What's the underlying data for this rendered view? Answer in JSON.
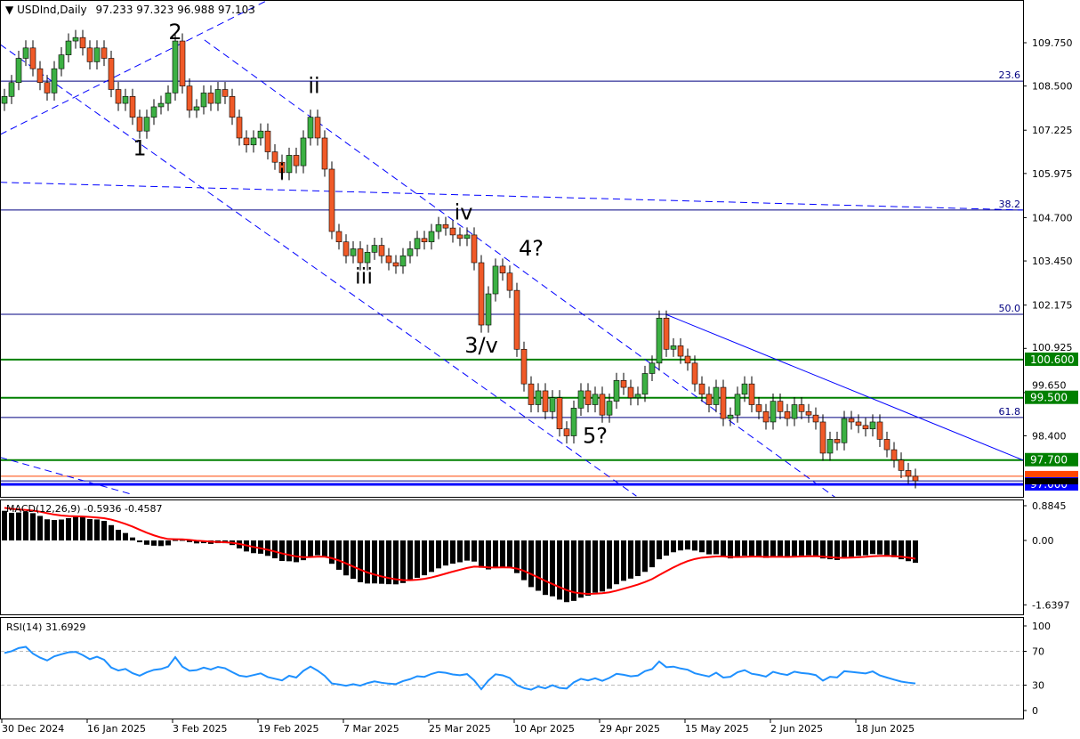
{
  "header": {
    "symbol_label": "USDInd,Daily",
    "ohlc": "97.233 97.323 96.988 97.103",
    "menu_icon": "triangle-down-icon"
  },
  "chart_data": {
    "type": "candlestick",
    "symbol": "USDInd",
    "timeframe": "Daily",
    "last_ohlc": {
      "open": 97.233,
      "high": 97.323,
      "low": 96.988,
      "close": 97.103
    },
    "x_tick_labels": [
      "30 Dec 2024",
      "16 Jan 2025",
      "3 Feb 2025",
      "19 Feb 2025",
      "7 Mar 2025",
      "25 Mar 2025",
      "10 Apr 2025",
      "29 Apr 2025",
      "15 May 2025",
      "2 Jun 2025",
      "18 Jun 2025"
    ],
    "y_tick_labels": [
      "109.750",
      "108.500",
      "107.225",
      "105.975",
      "104.700",
      "103.450",
      "102.175",
      "100.925",
      "99.650",
      "98.400"
    ],
    "ylim": [
      96.8,
      110.9
    ],
    "closes": [
      108.2,
      108.6,
      109.3,
      109.6,
      109.0,
      108.6,
      108.3,
      109.0,
      109.4,
      109.8,
      109.9,
      109.6,
      109.2,
      109.6,
      109.3,
      108.4,
      108.0,
      108.2,
      107.6,
      107.2,
      107.6,
      107.9,
      108.0,
      108.3,
      109.8,
      108.5,
      107.8,
      107.9,
      108.3,
      108.0,
      108.4,
      108.2,
      107.6,
      107.0,
      106.8,
      107.0,
      107.2,
      106.6,
      106.3,
      106.0,
      106.5,
      106.2,
      107.0,
      107.6,
      107.0,
      106.1,
      104.3,
      104.0,
      103.6,
      103.8,
      103.4,
      103.7,
      103.9,
      103.6,
      103.4,
      103.3,
      103.6,
      103.8,
      104.1,
      104.0,
      104.3,
      104.5,
      104.4,
      104.2,
      104.1,
      104.2,
      103.4,
      101.6,
      102.5,
      103.3,
      103.1,
      102.6,
      100.9,
      99.9,
      99.3,
      99.7,
      99.1,
      99.5,
      98.6,
      98.4,
      99.2,
      99.7,
      99.3,
      99.6,
      99.0,
      99.4,
      100.0,
      99.8,
      99.5,
      99.6,
      100.2,
      100.5,
      101.8,
      100.9,
      101.0,
      100.7,
      100.5,
      99.9,
      99.6,
      99.3,
      99.8,
      98.9,
      99.0,
      99.6,
      99.9,
      99.3,
      99.1,
      98.8,
      99.4,
      99.1,
      98.9,
      99.3,
      99.1,
      99.0,
      98.8,
      97.9,
      98.3,
      98.2,
      98.9,
      98.8,
      98.7,
      98.6,
      98.8,
      98.3,
      98.0,
      97.7,
      97.4,
      97.233,
      97.103
    ],
    "levels": [
      {
        "price": 108.64,
        "label": "23.6",
        "color": "#000080",
        "kind": "fib"
      },
      {
        "price": 104.92,
        "label": "38.2",
        "color": "#000080",
        "kind": "fib"
      },
      {
        "price": 101.91,
        "label": "50.0",
        "color": "#000080",
        "kind": "fib"
      },
      {
        "price": 98.93,
        "label": "61.8",
        "color": "#000080",
        "kind": "fib"
      },
      {
        "price": 100.6,
        "label": "100.600",
        "color": "#008000",
        "kind": "support"
      },
      {
        "price": 99.5,
        "label": "99.500",
        "color": "#008000",
        "kind": "support"
      },
      {
        "price": 97.7,
        "label": "97.700",
        "color": "#008000",
        "kind": "support"
      },
      {
        "price": 97.233,
        "label": "",
        "color": "#ff4500",
        "kind": "open"
      },
      {
        "price": 97.1,
        "label": "",
        "color": "#00008b",
        "kind": "line"
      },
      {
        "price": 97.0,
        "label": "97.000",
        "color": "#0000ff",
        "kind": "support"
      }
    ],
    "trendlines": [
      {
        "from": [
          -0.6,
          107.1
        ],
        "to": [
          37,
          110.98
        ],
        "style": "dashed"
      },
      {
        "from": [
          -0.6,
          109.7
        ],
        "to": [
          88.8,
          96.66
        ],
        "style": "dashed"
      },
      {
        "from": [
          28.1,
          109.83
        ],
        "to": [
          116.9,
          96.6
        ],
        "style": "dashed"
      },
      {
        "from": [
          -0.6,
          105.72
        ],
        "to": [
          143.1,
          104.92
        ],
        "style": "dashed"
      },
      {
        "from": [
          -0.6,
          97.78
        ],
        "to": [
          18.1,
          96.7
        ],
        "style": "dashed"
      },
      {
        "from": [
          92.9,
          101.91
        ],
        "to": [
          143.1,
          97.7
        ],
        "style": "solid"
      }
    ],
    "wave_labels": [
      {
        "text": "2",
        "bar": 24,
        "price": 110.2
      },
      {
        "text": "1",
        "bar": 19,
        "price": 106.5
      },
      {
        "text": "ii",
        "bar": 43.5,
        "price": 108.3
      },
      {
        "text": "i",
        "bar": 39,
        "price": 105.8
      },
      {
        "text": "iv",
        "bar": 64.5,
        "price": 104.65
      },
      {
        "text": "4?",
        "bar": 74,
        "price": 103.6
      },
      {
        "text": "iii",
        "bar": 50.5,
        "price": 102.8
      },
      {
        "text": "3/v",
        "bar": 67,
        "price": 100.8
      },
      {
        "text": "5?",
        "bar": 83,
        "price": 98.2
      }
    ],
    "price_tags": [
      {
        "label": "97.233",
        "bg": "#ff4500"
      },
      {
        "label": "97.103",
        "bg": "#000000"
      }
    ],
    "macd": {
      "label": "MACD(12,26,9) -0.5936 -0.4587",
      "y_tick_labels": [
        "0.8845",
        "0.00",
        "-1.6397"
      ],
      "ylim": [
        -1.7,
        1.0
      ],
      "main": -0.5936,
      "signal": -0.4587
    },
    "rsi": {
      "label": "RSI(14) 31.6929",
      "value": 31.6929,
      "y_tick_labels": [
        "100",
        "70",
        "30",
        "0"
      ],
      "levels": [
        70,
        30
      ],
      "ylim": [
        0,
        100
      ]
    }
  }
}
